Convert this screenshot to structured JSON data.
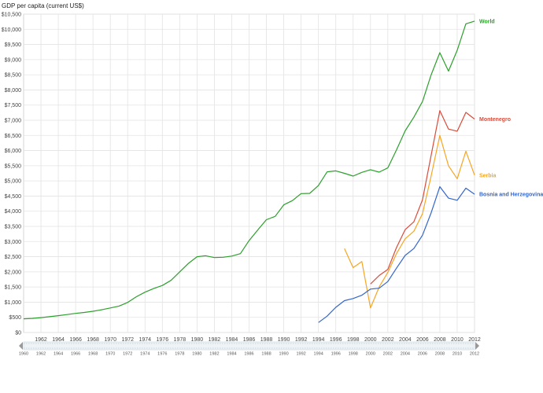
{
  "chart_data": {
    "type": "line",
    "ylabel": "GDP per capita (current US$)",
    "ylim": [
      0,
      10500
    ],
    "xlim": [
      1960,
      2012
    ],
    "yticks": [
      0,
      500,
      1000,
      1500,
      2000,
      2500,
      3000,
      3500,
      4000,
      4500,
      5000,
      5500,
      6000,
      6500,
      7000,
      7500,
      8000,
      8500,
      9000,
      9500,
      10000,
      10500
    ],
    "ytick_labels": [
      "$0",
      "$500",
      "$1,000",
      "$1,500",
      "$2,000",
      "$2,500",
      "$3,000",
      "$3,500",
      "$4,000",
      "$4,500",
      "$5,000",
      "$5,500",
      "$6,000",
      "$6,500",
      "$7,000",
      "$7,500",
      "$8,000",
      "$8,500",
      "$9,000",
      "$9,500",
      "$10,000",
      "$10,500"
    ],
    "xticks": [
      1962,
      1964,
      1966,
      1968,
      1970,
      1972,
      1974,
      1976,
      1978,
      1980,
      1982,
      1984,
      1986,
      1988,
      1990,
      1992,
      1994,
      1996,
      1998,
      2000,
      2002,
      2004,
      2006,
      2008,
      2010,
      2012
    ],
    "xtick_labels": [
      "1962",
      "1964",
      "1966",
      "1968",
      "1970",
      "1972",
      "1974",
      "1976",
      "1978",
      "1980",
      "1982",
      "1984",
      "1986",
      "1988",
      "1990",
      "1992",
      "1994",
      "1996",
      "1998",
      "2000",
      "2002",
      "2004",
      "2006",
      "2008",
      "2010",
      "2012"
    ],
    "grid": true,
    "series": [
      {
        "name": "World",
        "color": "#2ca02c",
        "x": [
          1960,
          1961,
          1962,
          1963,
          1964,
          1965,
          1966,
          1967,
          1968,
          1969,
          1970,
          1971,
          1972,
          1973,
          1974,
          1975,
          1976,
          1977,
          1978,
          1979,
          1980,
          1981,
          1982,
          1983,
          1984,
          1985,
          1986,
          1987,
          1988,
          1989,
          1990,
          1991,
          1992,
          1993,
          1994,
          1995,
          1996,
          1997,
          1998,
          1999,
          2000,
          2001,
          2002,
          2003,
          2004,
          2005,
          2006,
          2007,
          2008,
          2009,
          2010,
          2011,
          2012
        ],
        "y": [
          450,
          465,
          490,
          520,
          555,
          590,
          630,
          660,
          700,
          750,
          810,
          870,
          990,
          1180,
          1330,
          1450,
          1550,
          1720,
          2000,
          2280,
          2500,
          2530,
          2470,
          2480,
          2520,
          2600,
          3030,
          3380,
          3720,
          3830,
          4210,
          4350,
          4580,
          4590,
          4850,
          5300,
          5330,
          5250,
          5160,
          5280,
          5370,
          5290,
          5430,
          6020,
          6650,
          7100,
          7620,
          8500,
          9230,
          8620,
          9310,
          10180,
          10270
        ]
      },
      {
        "name": "Montenegro",
        "color": "#d94b3a",
        "x": [
          2000,
          2001,
          2002,
          2003,
          2004,
          2005,
          2006,
          2007,
          2008,
          2009,
          2010,
          2011,
          2012
        ],
        "y": [
          1600,
          1880,
          2080,
          2800,
          3390,
          3650,
          4380,
          5850,
          7320,
          6710,
          6640,
          7260,
          7040
        ]
      },
      {
        "name": "Serbia",
        "color": "#f5a623",
        "x": [
          1997,
          1998,
          1999,
          2000,
          2001,
          2002,
          2003,
          2004,
          2005,
          2006,
          2007,
          2008,
          2009,
          2010,
          2011,
          2012
        ],
        "y": [
          2770,
          2140,
          2340,
          810,
          1500,
          1980,
          2600,
          3090,
          3340,
          3920,
          5170,
          6500,
          5500,
          5070,
          5980,
          5190
        ]
      },
      {
        "name": "Bosnia and Herzegovina",
        "color": "#3366cc",
        "x": [
          1994,
          1995,
          1996,
          1997,
          1998,
          1999,
          2000,
          2001,
          2002,
          2003,
          2004,
          2005,
          2006,
          2007,
          2008,
          2009,
          2010,
          2011,
          2012
        ],
        "y": [
          330,
          540,
          830,
          1050,
          1120,
          1230,
          1430,
          1460,
          1680,
          2120,
          2540,
          2770,
          3210,
          3950,
          4810,
          4430,
          4360,
          4760,
          4560
        ]
      }
    ],
    "slider_labels": [
      "1960",
      "1962",
      "1964",
      "1966",
      "1968",
      "1970",
      "1972",
      "1974",
      "1976",
      "1978",
      "1980",
      "1982",
      "1984",
      "1986",
      "1988",
      "1990",
      "1992",
      "1994",
      "1996",
      "1998",
      "2000",
      "2002",
      "2004",
      "2006",
      "2008",
      "2010",
      "2012"
    ]
  }
}
